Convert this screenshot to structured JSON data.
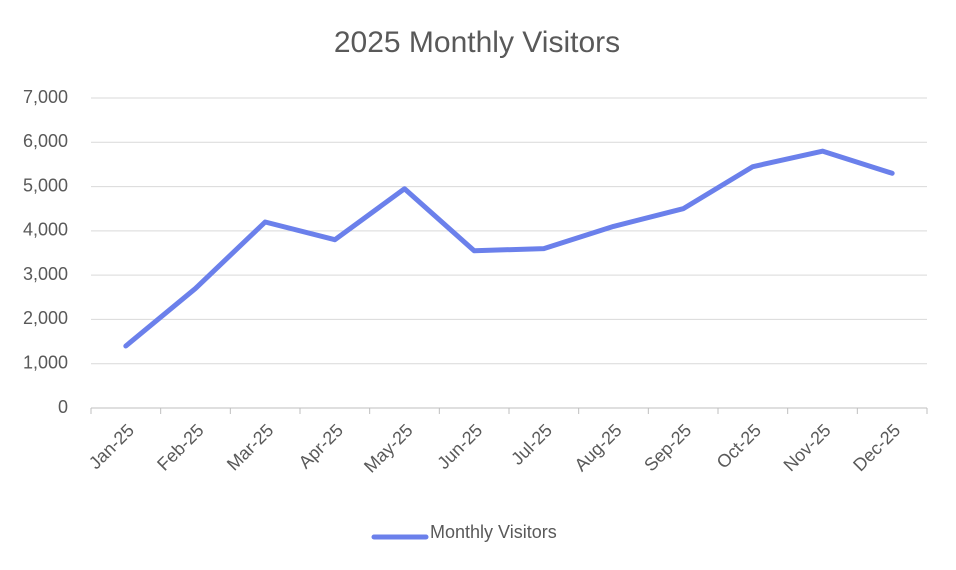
{
  "chart_data": {
    "type": "line",
    "title": "2025 Monthly Visitors",
    "categories": [
      "Jan-25",
      "Feb-25",
      "Mar-25",
      "Apr-25",
      "May-25",
      "Jun-25",
      "Jul-25",
      "Aug-25",
      "Sep-25",
      "Oct-25",
      "Nov-25",
      "Dec-25"
    ],
    "series": [
      {
        "name": "Monthly Visitors",
        "color": "#6b80eb",
        "values": [
          1400,
          2700,
          4200,
          3800,
          4950,
          3550,
          3600,
          4100,
          4500,
          5450,
          5800,
          5300
        ]
      }
    ],
    "ylim": [
      0,
      7000
    ],
    "yticks": [
      0,
      {
        "value": 1000,
        "label": "1,000"
      },
      {
        "value": 2000,
        "label": "2,000"
      },
      {
        "value": 3000,
        "label": "3,000"
      },
      {
        "value": 4000,
        "label": "4,000"
      },
      {
        "value": 5000,
        "label": "5,000"
      },
      {
        "value": 6000,
        "label": "6,000"
      },
      {
        "value": 7000,
        "label": "7,000"
      }
    ],
    "grid": true,
    "legend": "bottom"
  }
}
